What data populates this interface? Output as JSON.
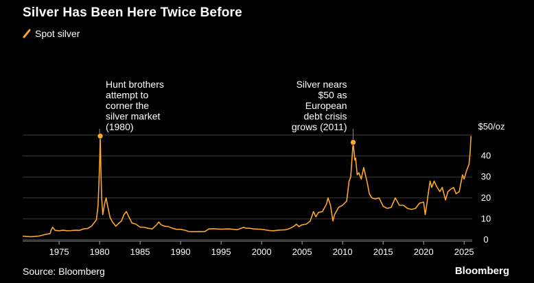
{
  "title": "Silver Has Been Here Twice Before",
  "legend": {
    "label": "Spot silver",
    "color": "#ffa726"
  },
  "footer": {
    "source": "Source: Bloomberg",
    "brand": "Bloomberg"
  },
  "chart_data": {
    "type": "line",
    "title": "Silver Has Been Here Twice Before",
    "xlabel": "",
    "ylabel": "$/oz",
    "y_unit_label": "$50/oz",
    "xlim": [
      1970.5,
      2026
    ],
    "ylim": [
      0,
      50
    ],
    "grid": true,
    "legend_position": "top-left",
    "x_ticks": [
      1975,
      1980,
      1985,
      1990,
      1995,
      2000,
      2005,
      2010,
      2015,
      2020,
      2025
    ],
    "y_ticks": [
      0,
      10,
      20,
      30,
      40
    ],
    "series": [
      {
        "name": "Spot silver",
        "color": "#ffa726",
        "x": [
          1970.5,
          1971,
          1971.5,
          1972,
          1972.5,
          1973,
          1973.5,
          1973.9,
          1974,
          1974.2,
          1974.5,
          1975,
          1975.5,
          1976,
          1976.5,
          1977,
          1977.5,
          1978,
          1978.5,
          1979,
          1979.3,
          1979.6,
          1979.8,
          1979.9,
          1980.0,
          1980.08,
          1980.15,
          1980.25,
          1980.4,
          1980.6,
          1980.8,
          1981,
          1981.3,
          1981.6,
          1982,
          1982.4,
          1982.7,
          1983,
          1983.3,
          1983.6,
          1984,
          1984.5,
          1985,
          1985.5,
          1986,
          1986.5,
          1987,
          1987.3,
          1987.6,
          1988,
          1988.5,
          1989,
          1989.5,
          1990,
          1990.5,
          1991,
          1992,
          1993,
          1993.5,
          1994,
          1995,
          1996,
          1997,
          1997.8,
          1998,
          1998.5,
          1999,
          2000,
          2001,
          2001.5,
          2002,
          2003,
          2003.5,
          2004,
          2004.3,
          2004.6,
          2005,
          2005.5,
          2006,
          2006.4,
          2006.7,
          2007,
          2007.5,
          2008,
          2008.2,
          2008.5,
          2008.8,
          2009,
          2009.5,
          2010,
          2010.5,
          2010.8,
          2011.0,
          2011.3,
          2011.5,
          2011.6,
          2011.8,
          2012,
          2012.3,
          2012.6,
          2012.9,
          2013,
          2013.3,
          2013.6,
          2014,
          2014.5,
          2015,
          2015.5,
          2016,
          2016.5,
          2017,
          2017.5,
          2018,
          2018.5,
          2019,
          2019.5,
          2020.0,
          2020.2,
          2020.4,
          2020.6,
          2020.8,
          2021,
          2021.3,
          2021.6,
          2022,
          2022.3,
          2022.7,
          2023,
          2023.3,
          2023.7,
          2024,
          2024.4,
          2024.8,
          2025,
          2025.3,
          2025.6,
          2025.75,
          2025.85
        ],
        "values": [
          1.8,
          1.6,
          1.5,
          1.6,
          1.8,
          2.3,
          2.7,
          3.0,
          4.5,
          6.0,
          4.5,
          4.3,
          4.6,
          4.3,
          4.4,
          4.6,
          4.5,
          5.2,
          5.4,
          6.5,
          8.0,
          9.5,
          16.0,
          25.0,
          36.0,
          49.5,
          35.0,
          20.0,
          12.0,
          17.0,
          20.0,
          16.0,
          10.5,
          8.5,
          6.5,
          8.0,
          9.0,
          12.0,
          13.5,
          11.0,
          8.0,
          7.5,
          6.0,
          6.0,
          5.5,
          5.2,
          7.0,
          8.5,
          7.2,
          6.5,
          6.3,
          5.5,
          5.0,
          5.0,
          4.6,
          4.0,
          3.9,
          4.0,
          5.2,
          5.3,
          5.1,
          5.2,
          4.8,
          6.0,
          5.6,
          5.5,
          5.2,
          5.0,
          4.4,
          4.3,
          4.6,
          4.8,
          5.5,
          6.5,
          7.5,
          6.3,
          7.2,
          7.5,
          9.0,
          13.5,
          11.0,
          13.0,
          13.5,
          17.0,
          20.0,
          16.5,
          9.0,
          12.0,
          15.5,
          16.5,
          18.5,
          28.0,
          30.0,
          46.5,
          38.0,
          39.0,
          31.0,
          32.0,
          29.0,
          34.5,
          29.5,
          28.0,
          22.0,
          20.0,
          19.5,
          20.0,
          16.0,
          15.0,
          15.5,
          20.0,
          16.5,
          16.5,
          15.0,
          14.5,
          15.0,
          17.5,
          18.0,
          12.0,
          17.0,
          23.0,
          28.0,
          25.0,
          28.0,
          25.5,
          23.0,
          25.0,
          19.0,
          23.0,
          24.0,
          25.0,
          22.0,
          23.0,
          31.0,
          29.0,
          33.0,
          36.0,
          42.0,
          49.5
        ]
      }
    ],
    "markers": [
      {
        "x": 1980.08,
        "y": 49.5,
        "label": [
          "Hunt brothers",
          "attempt to",
          "corner the",
          "silver market",
          "(1980)"
        ],
        "align": "left"
      },
      {
        "x": 2011.3,
        "y": 46.5,
        "label": [
          "Silver nears",
          "$50 as",
          "European",
          "debt crisis",
          "grows (2011)"
        ],
        "align": "right"
      }
    ]
  }
}
